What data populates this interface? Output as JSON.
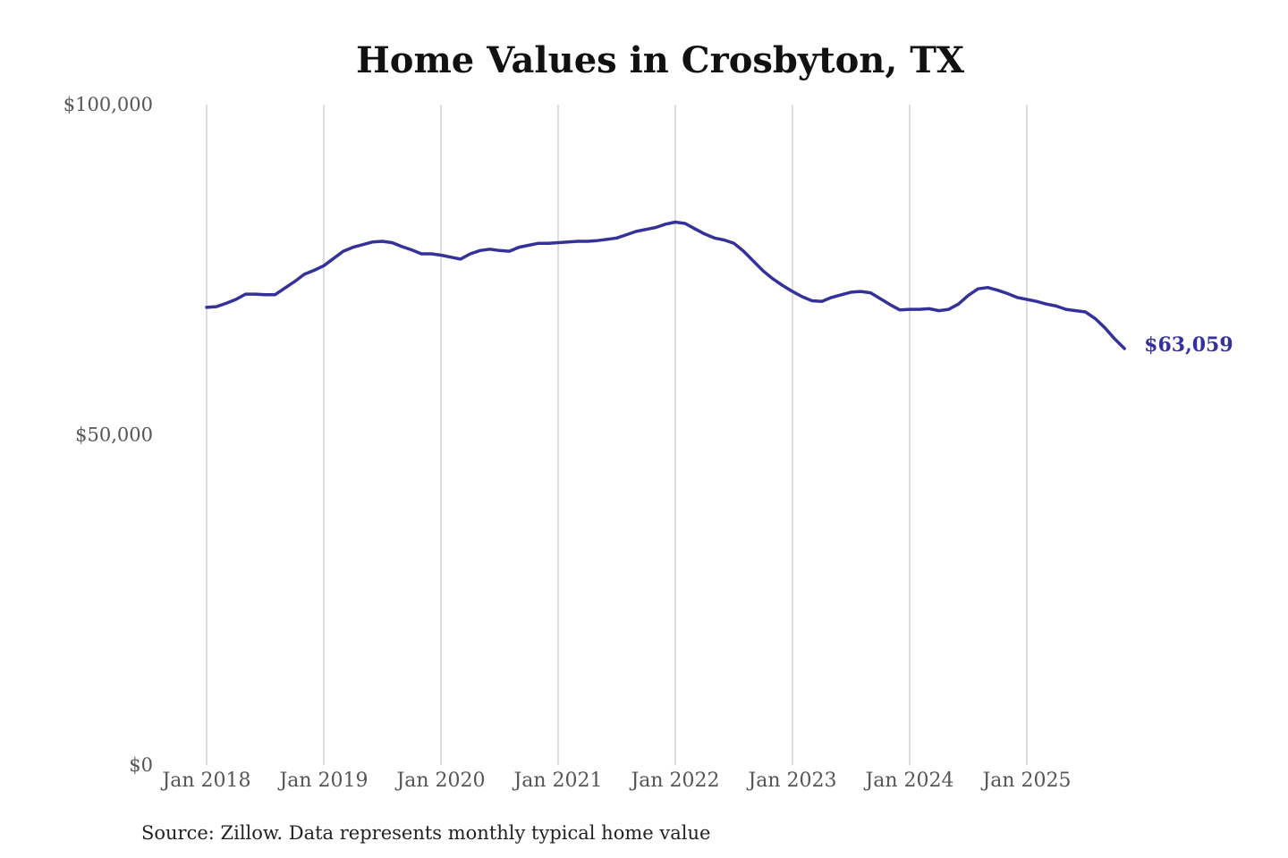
{
  "colors": {
    "series": "#35319a",
    "grid": "#c8c8c8",
    "text": "#555555"
  },
  "chart_data": {
    "type": "line",
    "title": "Home Values in Crosbyton, TX",
    "xlabel": "",
    "ylabel": "",
    "ylim": [
      0,
      100000
    ],
    "xlim": [
      "2018-01",
      "2025-10"
    ],
    "grid": "vertical lines at each January",
    "y_ticks": [
      {
        "value": 100000,
        "label": "$100,000"
      },
      {
        "value": 50000,
        "label": "$50,000"
      },
      {
        "value": 0,
        "label": "$0"
      }
    ],
    "x_ticks": [
      {
        "value": "2018-01",
        "label": "Jan 2018"
      },
      {
        "value": "2019-01",
        "label": "Jan 2019"
      },
      {
        "value": "2020-01",
        "label": "Jan 2020"
      },
      {
        "value": "2021-01",
        "label": "Jan 2021"
      },
      {
        "value": "2022-01",
        "label": "Jan 2022"
      },
      {
        "value": "2023-01",
        "label": "Jan 2023"
      },
      {
        "value": "2024-01",
        "label": "Jan 2024"
      },
      {
        "value": "2025-01",
        "label": "Jan 2025"
      }
    ],
    "end_label": "$63,059",
    "series": [
      {
        "points": [
          {
            "x": "2018-01",
            "y": 69300
          },
          {
            "x": "2018-02",
            "y": 69400
          },
          {
            "x": "2018-03",
            "y": 69900
          },
          {
            "x": "2018-04",
            "y": 70500
          },
          {
            "x": "2018-05",
            "y": 71300
          },
          {
            "x": "2018-06",
            "y": 71300
          },
          {
            "x": "2018-07",
            "y": 71200
          },
          {
            "x": "2018-08",
            "y": 71200
          },
          {
            "x": "2018-09",
            "y": 72200
          },
          {
            "x": "2018-10",
            "y": 73200
          },
          {
            "x": "2018-11",
            "y": 74300
          },
          {
            "x": "2018-12",
            "y": 74900
          },
          {
            "x": "2019-01",
            "y": 75600
          },
          {
            "x": "2019-02",
            "y": 76700
          },
          {
            "x": "2019-03",
            "y": 77800
          },
          {
            "x": "2019-04",
            "y": 78400
          },
          {
            "x": "2019-05",
            "y": 78800
          },
          {
            "x": "2019-06",
            "y": 79200
          },
          {
            "x": "2019-07",
            "y": 79300
          },
          {
            "x": "2019-08",
            "y": 79100
          },
          {
            "x": "2019-09",
            "y": 78500
          },
          {
            "x": "2019-10",
            "y": 78000
          },
          {
            "x": "2019-11",
            "y": 77400
          },
          {
            "x": "2019-12",
            "y": 77400
          },
          {
            "x": "2020-01",
            "y": 77200
          },
          {
            "x": "2020-02",
            "y": 76900
          },
          {
            "x": "2020-03",
            "y": 76600
          },
          {
            "x": "2020-04",
            "y": 77400
          },
          {
            "x": "2020-05",
            "y": 77900
          },
          {
            "x": "2020-06",
            "y": 78100
          },
          {
            "x": "2020-07",
            "y": 77900
          },
          {
            "x": "2020-08",
            "y": 77800
          },
          {
            "x": "2020-09",
            "y": 78400
          },
          {
            "x": "2020-10",
            "y": 78700
          },
          {
            "x": "2020-11",
            "y": 79000
          },
          {
            "x": "2020-12",
            "y": 79000
          },
          {
            "x": "2021-01",
            "y": 79100
          },
          {
            "x": "2021-02",
            "y": 79200
          },
          {
            "x": "2021-03",
            "y": 79300
          },
          {
            "x": "2021-04",
            "y": 79300
          },
          {
            "x": "2021-05",
            "y": 79400
          },
          {
            "x": "2021-06",
            "y": 79600
          },
          {
            "x": "2021-07",
            "y": 79800
          },
          {
            "x": "2021-08",
            "y": 80300
          },
          {
            "x": "2021-09",
            "y": 80800
          },
          {
            "x": "2021-10",
            "y": 81100
          },
          {
            "x": "2021-11",
            "y": 81400
          },
          {
            "x": "2021-12",
            "y": 81900
          },
          {
            "x": "2022-01",
            "y": 82200
          },
          {
            "x": "2022-02",
            "y": 82000
          },
          {
            "x": "2022-03",
            "y": 81200
          },
          {
            "x": "2022-04",
            "y": 80400
          },
          {
            "x": "2022-05",
            "y": 79800
          },
          {
            "x": "2022-06",
            "y": 79500
          },
          {
            "x": "2022-07",
            "y": 79000
          },
          {
            "x": "2022-08",
            "y": 77800
          },
          {
            "x": "2022-09",
            "y": 76300
          },
          {
            "x": "2022-10",
            "y": 74800
          },
          {
            "x": "2022-11",
            "y": 73600
          },
          {
            "x": "2022-12",
            "y": 72600
          },
          {
            "x": "2023-01",
            "y": 71700
          },
          {
            "x": "2023-02",
            "y": 70900
          },
          {
            "x": "2023-03",
            "y": 70300
          },
          {
            "x": "2023-04",
            "y": 70200
          },
          {
            "x": "2023-05",
            "y": 70800
          },
          {
            "x": "2023-06",
            "y": 71200
          },
          {
            "x": "2023-07",
            "y": 71600
          },
          {
            "x": "2023-08",
            "y": 71700
          },
          {
            "x": "2023-09",
            "y": 71500
          },
          {
            "x": "2023-10",
            "y": 70600
          },
          {
            "x": "2023-11",
            "y": 69700
          },
          {
            "x": "2023-12",
            "y": 68900
          },
          {
            "x": "2024-01",
            "y": 69000
          },
          {
            "x": "2024-02",
            "y": 69000
          },
          {
            "x": "2024-03",
            "y": 69100
          },
          {
            "x": "2024-04",
            "y": 68800
          },
          {
            "x": "2024-05",
            "y": 69000
          },
          {
            "x": "2024-06",
            "y": 69800
          },
          {
            "x": "2024-07",
            "y": 71100
          },
          {
            "x": "2024-08",
            "y": 72100
          },
          {
            "x": "2024-09",
            "y": 72300
          },
          {
            "x": "2024-10",
            "y": 71900
          },
          {
            "x": "2024-11",
            "y": 71400
          },
          {
            "x": "2024-12",
            "y": 70800
          },
          {
            "x": "2025-01",
            "y": 70500
          },
          {
            "x": "2025-02",
            "y": 70200
          },
          {
            "x": "2025-03",
            "y": 69800
          },
          {
            "x": "2025-04",
            "y": 69500
          },
          {
            "x": "2025-05",
            "y": 69000
          },
          {
            "x": "2025-06",
            "y": 68800
          },
          {
            "x": "2025-07",
            "y": 68600
          },
          {
            "x": "2025-08",
            "y": 67600
          },
          {
            "x": "2025-09",
            "y": 66200
          },
          {
            "x": "2025-10",
            "y": 64500
          },
          {
            "x": "2025-11",
            "y": 63059
          }
        ]
      }
    ]
  },
  "footer": {
    "source": "Source: Zillow. Data represents monthly typical home value"
  }
}
